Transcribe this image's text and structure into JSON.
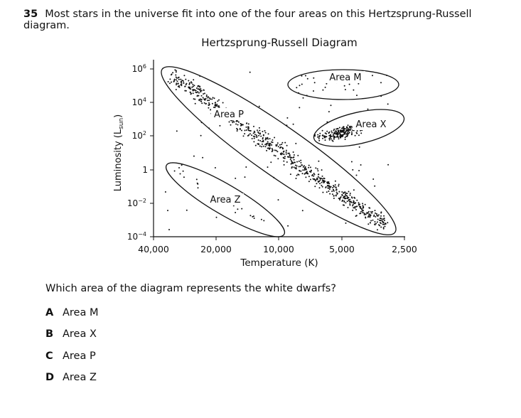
{
  "question": {
    "number": "35",
    "text": "Most stars in the universe fit into one of the four areas on this Hertzsprung-Russell diagram."
  },
  "diagram": {
    "title": "Hertzsprung-Russell Diagram",
    "y_axis_label": "Luminosity (L",
    "y_axis_label_sub": "sun",
    "y_axis_label_end": ")",
    "x_axis_label": "Temperature (K)",
    "y_ticks": [
      {
        "base": "10",
        "exp": "6"
      },
      {
        "base": "10",
        "exp": "4"
      },
      {
        "base": "10",
        "exp": "2"
      },
      {
        "base": "1",
        "exp": ""
      },
      {
        "base": "10",
        "exp": "−2"
      },
      {
        "base": "10",
        "exp": "−4"
      }
    ],
    "x_ticks": [
      "40,000",
      "20,000",
      "10,000",
      "5,000",
      "2,500"
    ],
    "areas": {
      "m": "Area M",
      "p": "Area P",
      "x": "Area X",
      "z": "Area Z"
    }
  },
  "prompt": "Which area of the diagram represents the white dwarfs?",
  "choices": [
    {
      "letter": "A",
      "text": "Area M"
    },
    {
      "letter": "B",
      "text": "Area X"
    },
    {
      "letter": "C",
      "text": "Area P"
    },
    {
      "letter": "D",
      "text": "Area Z"
    }
  ]
}
